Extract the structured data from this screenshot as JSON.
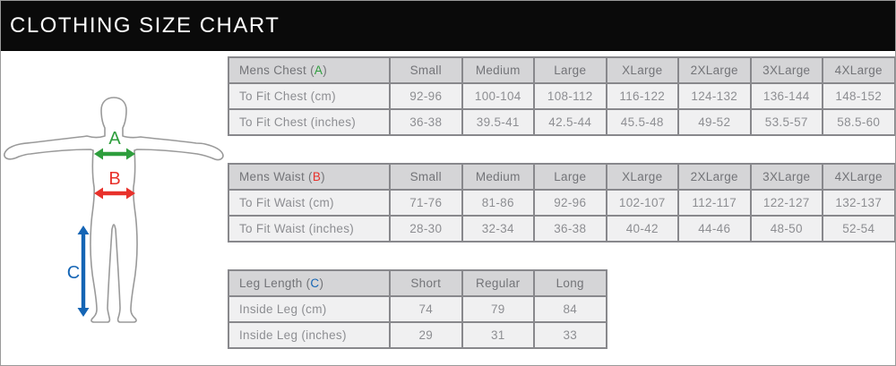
{
  "header": {
    "title": "CLOTHING SIZE CHART"
  },
  "figure": {
    "markers": [
      {
        "letter": "A",
        "color": "#2e9e3d"
      },
      {
        "letter": "B",
        "color": "#e8312b"
      },
      {
        "letter": "C",
        "color": "#1565b5"
      }
    ]
  },
  "tables": [
    {
      "id": "mens-chest",
      "label_prefix": "Mens Chest (",
      "key_letter": "A",
      "key_color": "#2e9e3d",
      "label_suffix": ")",
      "columns": [
        "Small",
        "Medium",
        "Large",
        "XLarge",
        "2XLarge",
        "3XLarge",
        "4XLarge"
      ],
      "rows": [
        {
          "label": "To Fit Chest (cm)",
          "values": [
            "92-96",
            "100-104",
            "108-112",
            "116-122",
            "124-132",
            "136-144",
            "148-152"
          ]
        },
        {
          "label": "To Fit Chest (inches)",
          "values": [
            "36-38",
            "39.5-41",
            "42.5-44",
            "45.5-48",
            "49-52",
            "53.5-57",
            "58.5-60"
          ]
        }
      ]
    },
    {
      "id": "mens-waist",
      "label_prefix": "Mens Waist (",
      "key_letter": "B",
      "key_color": "#e8312b",
      "label_suffix": ")",
      "columns": [
        "Small",
        "Medium",
        "Large",
        "XLarge",
        "2XLarge",
        "3XLarge",
        "4XLarge"
      ],
      "rows": [
        {
          "label": "To Fit Waist (cm)",
          "values": [
            "71-76",
            "81-86",
            "92-96",
            "102-107",
            "112-117",
            "122-127",
            "132-137"
          ]
        },
        {
          "label": "To Fit Waist (inches)",
          "values": [
            "28-30",
            "32-34",
            "36-38",
            "40-42",
            "44-46",
            "48-50",
            "52-54"
          ]
        }
      ]
    },
    {
      "id": "leg-length",
      "label_prefix": "Leg Length (",
      "key_letter": "C",
      "key_color": "#1565b5",
      "label_suffix": ")",
      "columns": [
        "Short",
        "Regular",
        "Long"
      ],
      "rows": [
        {
          "label": "Inside Leg (cm)",
          "values": [
            "74",
            "79",
            "84"
          ]
        },
        {
          "label": "Inside Leg (inches)",
          "values": [
            "29",
            "31",
            "33"
          ]
        }
      ]
    }
  ],
  "colors": {
    "titlebar_bg": "#0a0a0a",
    "titlebar_text": "#ffffff",
    "table_header_bg": "#d5d5d7",
    "table_row_bg": "#f0f0f1",
    "table_border": "#88888c",
    "table_text": "#8d8e92",
    "figure_outline": "#9a9a9a"
  }
}
